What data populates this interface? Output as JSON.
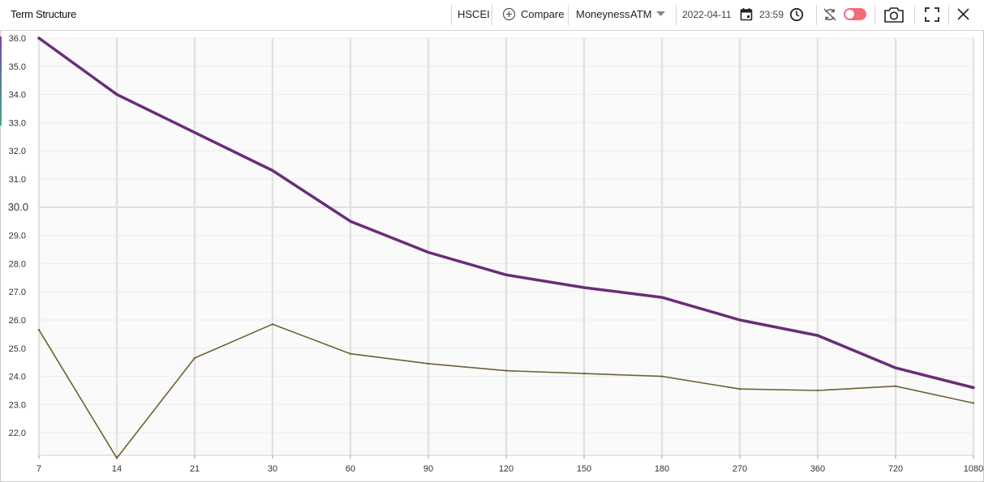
{
  "toolbar": {
    "title": "Term Structure",
    "symbol": "HSCEI",
    "compare_label": "Compare",
    "moneyness_label": "Moneyness",
    "moneyness_value": "ATM",
    "date": "2022-04-11",
    "time": "23:59",
    "icons": {
      "compare": "plus-circle-icon",
      "dropdown": "caret-down-icon",
      "calendar": "calendar-icon",
      "clock": "clock-icon",
      "sync": "sync-off-icon",
      "toggle": "toggle-switch",
      "camera": "camera-icon",
      "fullscreen": "fullscreen-icon",
      "close": "close-icon"
    },
    "toggle_color": "#f26b78"
  },
  "chart_data": {
    "type": "line",
    "title": "",
    "xlabel": "",
    "ylabel": "",
    "categories": [
      "7",
      "14",
      "21",
      "30",
      "60",
      "90",
      "120",
      "150",
      "180",
      "270",
      "360",
      "720",
      "1080"
    ],
    "ylim": [
      21.2,
      36.0
    ],
    "yticks": [
      "22.0",
      "23.0",
      "24.0",
      "25.0",
      "26.0",
      "27.0",
      "28.0",
      "29.0",
      "30.0",
      "31.0",
      "32.0",
      "33.0",
      "34.0",
      "35.0",
      "36.0"
    ],
    "grid": true,
    "series": [
      {
        "color": "#6a2d78",
        "values": [
          36.0,
          34.0,
          32.65,
          31.3,
          29.5,
          28.4,
          27.6,
          27.15,
          26.8,
          26.0,
          25.45,
          24.3,
          23.6
        ]
      },
      {
        "color": "#6e6030",
        "values": [
          25.65,
          21.1,
          24.65,
          25.85,
          24.8,
          24.45,
          24.2,
          24.1,
          24.0,
          23.55,
          23.5,
          23.65,
          23.05
        ]
      }
    ]
  }
}
